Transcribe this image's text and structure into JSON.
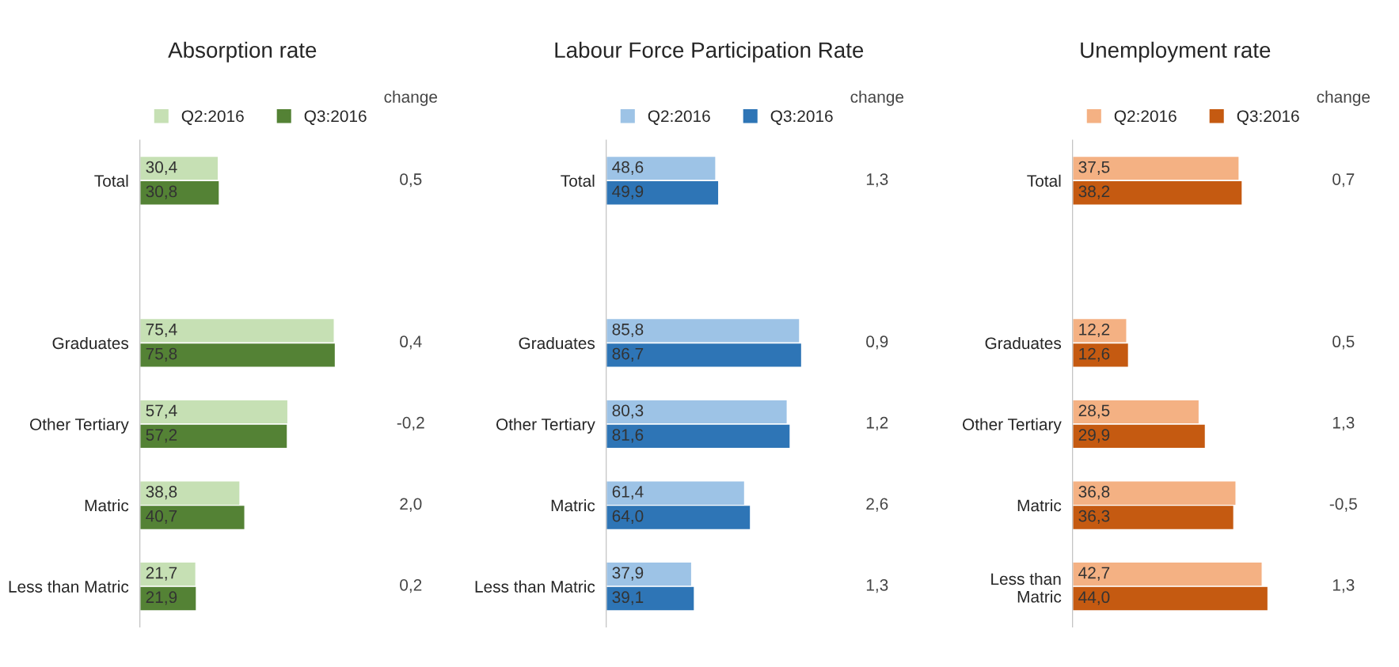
{
  "chart_data": [
    {
      "type": "bar",
      "orientation": "horizontal",
      "title": "Absorption rate",
      "categories": [
        "Total",
        null,
        "Graduates",
        "Other Tertiary",
        "Matric",
        "Less than Matric"
      ],
      "tick_labels": "y",
      "grid": false,
      "legend": "top",
      "series": [
        {
          "name": "Q2:2016",
          "color": "#c6e0b4",
          "values": [
            30.4,
            null,
            75.4,
            57.4,
            38.8,
            21.7
          ],
          "value_labels": [
            "30,4",
            null,
            "75,4",
            "57,4",
            "38,8",
            "21,7"
          ]
        },
        {
          "name": "Q3:2016",
          "color": "#548235",
          "values": [
            30.8,
            null,
            75.8,
            57.2,
            40.7,
            21.9
          ],
          "value_labels": [
            "30,8",
            null,
            "75,8",
            "57,2",
            "40,7",
            "21,9"
          ]
        }
      ],
      "annotations": [
        "change",
        "0,5",
        "0,4",
        "-0,2",
        "2,0",
        "0,2"
      ]
    },
    {
      "type": "bar",
      "orientation": "horizontal",
      "title": "Labour Force Participation Rate",
      "categories": [
        "Total",
        null,
        "Graduates",
        "Other Tertiary",
        "Matric",
        "Less than Matric"
      ],
      "tick_labels": "y",
      "grid": false,
      "legend": "top",
      "series": [
        {
          "name": "Q2:2016",
          "color": "#9dc3e6",
          "values": [
            48.6,
            null,
            85.8,
            80.3,
            61.4,
            37.9
          ],
          "value_labels": [
            "48,6",
            null,
            "85,8",
            "80,3",
            "61,4",
            "37,9"
          ]
        },
        {
          "name": "Q3:2016",
          "color": "#2e75b6",
          "values": [
            49.9,
            null,
            86.7,
            81.6,
            64.0,
            39.1
          ],
          "value_labels": [
            "49,9",
            null,
            "86,7",
            "81,6",
            "64,0",
            "39,1"
          ]
        }
      ],
      "annotations": [
        "change",
        "1,3",
        "0,9",
        "1,2",
        "2,6",
        "1,3"
      ]
    },
    {
      "type": "bar",
      "orientation": "horizontal",
      "title": "Unemployment rate",
      "categories": [
        "Total",
        null,
        "Graduates",
        "Other Tertiary",
        "Matric",
        "Less than\nMatric"
      ],
      "tick_labels": "y",
      "grid": false,
      "legend": "top",
      "series": [
        {
          "name": "Q2:2016",
          "color": "#f4b183",
          "values": [
            37.5,
            null,
            12.2,
            28.5,
            36.8,
            42.7
          ],
          "value_labels": [
            "37,5",
            null,
            "12,2",
            "28,5",
            "36,8",
            "42,7"
          ]
        },
        {
          "name": "Q3:2016",
          "color": "#c55a11",
          "values": [
            38.2,
            null,
            12.6,
            29.9,
            36.3,
            44.0
          ],
          "value_labels": [
            "38,2",
            null,
            "12,6",
            "29,9",
            "36,3",
            "44,0"
          ]
        }
      ],
      "annotations": [
        "change",
        "0,7",
        "0,5",
        "1,3",
        "-0,5",
        "1,3"
      ]
    }
  ]
}
